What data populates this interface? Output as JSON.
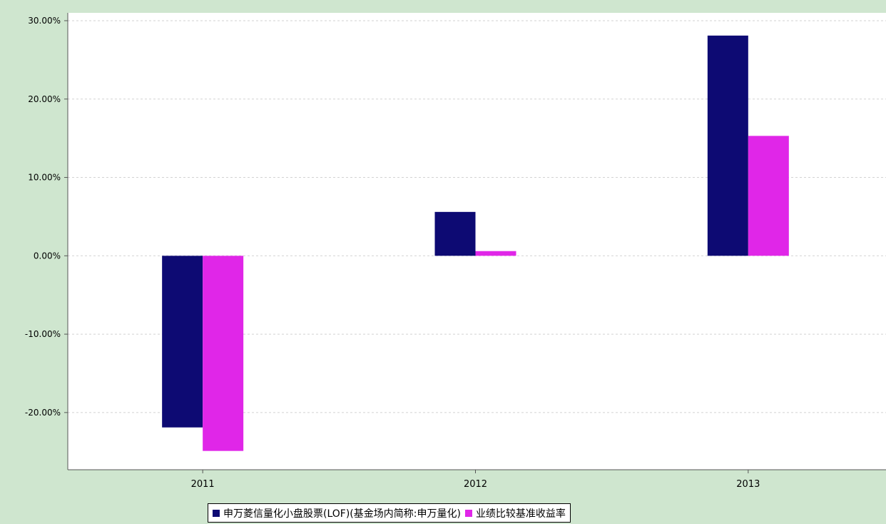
{
  "chart_data": {
    "type": "bar",
    "categories": [
      "2011",
      "2012",
      "2013"
    ],
    "series": [
      {
        "name": "申万菱信量化小盘股票(LOF)(基金场内简称:申万量化)",
        "color": "#0d0a73",
        "values": [
          -21.9,
          5.6,
          28.1
        ]
      },
      {
        "name": "业绩比较基准收益率",
        "color": "#e026e8",
        "values": [
          -24.9,
          0.6,
          15.3
        ]
      }
    ],
    "y_ticks": [
      "30.00%",
      "20.00%",
      "10.00%",
      "0.00%",
      "-10.00%",
      "-20.00%"
    ],
    "ylim": [
      -27.3,
      31.0
    ],
    "grid": true,
    "legend_position": "bottom"
  }
}
